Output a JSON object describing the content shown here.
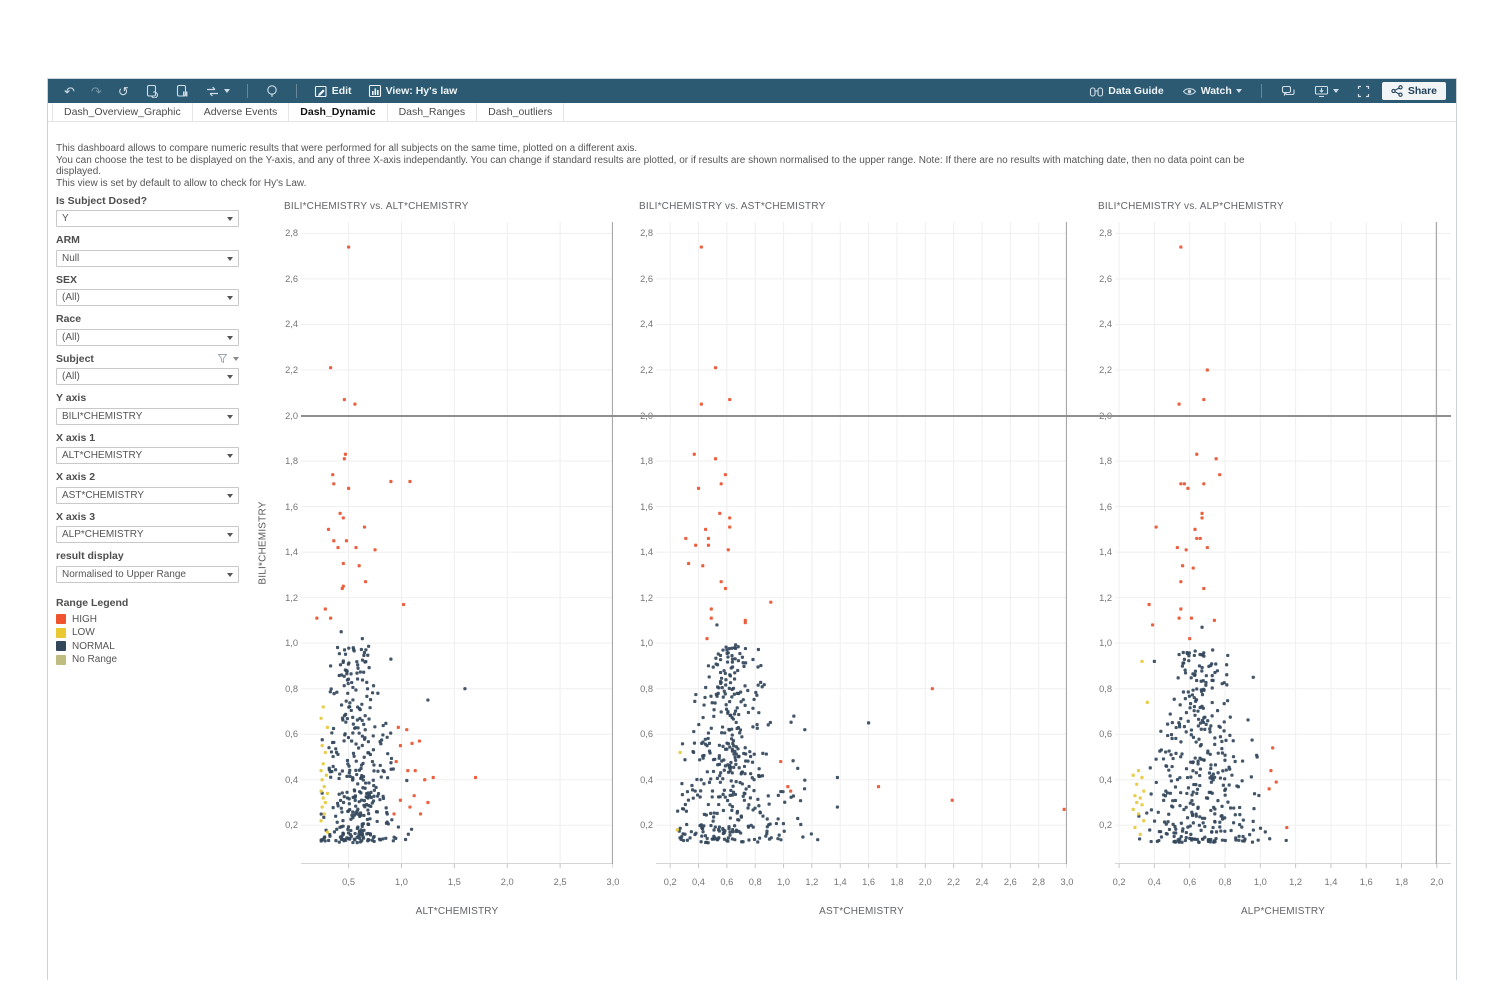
{
  "toolbar": {
    "edit_label": "Edit",
    "view_label": "View: Hy's law",
    "data_guide_label": "Data Guide",
    "watch_label": "Watch",
    "share_label": "Share",
    "background_color": "#2d5a73"
  },
  "tabs": {
    "items": [
      "Dash_Overview_Graphic",
      "Adverse Events",
      "Dash_Dynamic",
      "Dash_Ranges",
      "Dash_outliers"
    ],
    "active": "Dash_Dynamic"
  },
  "description": {
    "lines": [
      "This dashboard allows to compare numeric results that were performed for all subjects on the same time, plotted on a different axis.",
      "You can choose the test to be displayed on the Y-axis, and any of three X-axis independantly. You can change if standard results are plotted, or if results are shown normalised to the upper range. Note: If there are no results with matching date, then no data point can be displayed.",
      "This view is set by default to allow to check for Hy's Law."
    ]
  },
  "filters": [
    {
      "label": "Is Subject Dosed?",
      "value": "Y"
    },
    {
      "label": "ARM",
      "value": "Null"
    },
    {
      "label": "SEX",
      "value": "(All)"
    },
    {
      "label": "Race",
      "value": "(All)"
    },
    {
      "label": "Subject",
      "value": "(All)",
      "has_funnel": true
    },
    {
      "label": "Y axis",
      "value": "BILI*CHEMISTRY"
    },
    {
      "label": "X axis 1",
      "value": "ALT*CHEMISTRY"
    },
    {
      "label": "X axis 2",
      "value": "AST*CHEMISTRY"
    },
    {
      "label": "X axis 3",
      "value": "ALP*CHEMISTRY"
    },
    {
      "label": "result display",
      "value": "Normalised to Upper Range"
    }
  ],
  "legend": {
    "title": "Range Legend",
    "items": [
      {
        "label": "HIGH",
        "color": "#f0542f"
      },
      {
        "label": "LOW",
        "color": "#eac832"
      },
      {
        "label": "NORMAL",
        "color": "#33475b"
      },
      {
        "label": "No Range",
        "color": "#c0bb7e"
      }
    ]
  },
  "chart_data": {
    "type": "scatter",
    "ylabel": "BILI*CHEMISTRY",
    "reference_line_y": 2.0,
    "point_colors": {
      "HIGH": "#ea5330",
      "LOW": "#e7c93a",
      "NORMAL": "#33475b"
    },
    "shared_y": {
      "range": [
        0.03,
        2.85
      ],
      "tick_values": [
        0.2,
        0.4,
        0.6,
        0.8,
        1.0,
        1.2,
        1.4,
        1.6,
        1.8,
        2.0,
        2.2,
        2.4,
        2.6,
        2.8
      ],
      "tick_labels": [
        "0,2",
        "0,4",
        "0,6",
        "0,8",
        "1,0",
        "1,2",
        "1,4",
        "1,6",
        "1,8",
        "2,0",
        "2,2",
        "2,4",
        "2,6",
        "2,8"
      ]
    },
    "charts": [
      {
        "title": "BILI*CHEMISTRY vs. ALT*CHEMISTRY",
        "xlabel": "ALT*CHEMISTRY",
        "x_range": [
          0.05,
          3.0
        ],
        "x_tick_values": [
          0.5,
          1.0,
          1.5,
          2.0,
          2.5,
          3.0
        ],
        "x_tick_labels": [
          "0,5",
          "1,0",
          "1,5",
          "2,0",
          "2,5",
          "3,0"
        ],
        "x_border_at": 3.0,
        "series": [
          {
            "name": "NORMAL",
            "points": [
              [
                1.6,
                0.8
              ],
              [
                0.9,
                0.93
              ],
              [
                0.43,
                1.05
              ],
              [
                1.25,
                0.75
              ],
              [
                0.63,
                1.02
              ],
              [
                0.33,
                0.9
              ]
            ],
            "cluster": {
              "seed": 11,
              "count": 360,
              "center_x": 0.55,
              "spread_x": 0.52,
              "x_min": 0.24,
              "x_max": 1.42,
              "y_min": 0.13,
              "y_max": 0.99,
              "right_tail": 0.5
            }
          },
          {
            "name": "LOW",
            "points": [
              [
                0.26,
                0.72
              ],
              [
                0.24,
                0.67
              ],
              [
                0.3,
                0.63
              ],
              [
                0.25,
                0.55
              ],
              [
                0.28,
                0.52
              ],
              [
                0.26,
                0.47
              ],
              [
                0.24,
                0.44
              ],
              [
                0.29,
                0.42
              ],
              [
                0.25,
                0.4
              ],
              [
                0.27,
                0.37
              ],
              [
                0.24,
                0.35
              ],
              [
                0.3,
                0.34
              ],
              [
                0.26,
                0.32
              ],
              [
                0.28,
                0.3
              ],
              [
                0.25,
                0.28
              ],
              [
                0.27,
                0.25
              ],
              [
                0.24,
                0.22
              ],
              [
                0.3,
                0.17
              ]
            ]
          },
          {
            "name": "HIGH",
            "points": [
              [
                0.5,
                2.74
              ],
              [
                0.33,
                2.21
              ],
              [
                0.46,
                2.07
              ],
              [
                0.56,
                2.05
              ],
              [
                0.47,
                1.83
              ],
              [
                0.46,
                1.81
              ],
              [
                0.35,
                1.74
              ],
              [
                0.36,
                1.7
              ],
              [
                0.5,
                1.68
              ],
              [
                0.9,
                1.71
              ],
              [
                1.08,
                1.71
              ],
              [
                0.42,
                1.57
              ],
              [
                0.45,
                1.55
              ],
              [
                0.31,
                1.5
              ],
              [
                0.65,
                1.51
              ],
              [
                0.36,
                1.45
              ],
              [
                0.48,
                1.45
              ],
              [
                0.4,
                1.42
              ],
              [
                0.57,
                1.42
              ],
              [
                0.75,
                1.41
              ],
              [
                0.45,
                1.35
              ],
              [
                0.6,
                1.34
              ],
              [
                0.66,
                1.27
              ],
              [
                0.45,
                1.25
              ],
              [
                0.44,
                1.24
              ],
              [
                0.28,
                1.15
              ],
              [
                0.2,
                1.11
              ],
              [
                0.33,
                1.11
              ],
              [
                1.02,
                1.17
              ],
              [
                0.97,
                0.63
              ],
              [
                1.05,
                0.62
              ],
              [
                0.99,
                0.55
              ],
              [
                1.1,
                0.56
              ],
              [
                1.17,
                0.57
              ],
              [
                0.95,
                0.48
              ],
              [
                1.06,
                0.44
              ],
              [
                1.13,
                0.44
              ],
              [
                1.22,
                0.4
              ],
              [
                1.3,
                0.41
              ],
              [
                1.7,
                0.41
              ],
              [
                1.12,
                0.33
              ],
              [
                0.99,
                0.31
              ],
              [
                1.08,
                0.28
              ],
              [
                1.25,
                0.3
              ],
              [
                0.93,
                0.25
              ],
              [
                1.18,
                0.25
              ]
            ]
          }
        ]
      },
      {
        "title": "BILI*CHEMISTRY vs. AST*CHEMISTRY",
        "xlabel": "AST*CHEMISTRY",
        "x_range": [
          0.1,
          3.0
        ],
        "x_tick_values": [
          0.2,
          0.4,
          0.6,
          0.8,
          1.0,
          1.2,
          1.4,
          1.6,
          1.8,
          2.0,
          2.2,
          2.4,
          2.6,
          2.8,
          3.0
        ],
        "x_tick_labels": [
          "0,2",
          "0,4",
          "0,6",
          "0,8",
          "1,0",
          "1,2",
          "1,4",
          "1,6",
          "1,8",
          "2,0",
          "2,2",
          "2,4",
          "2,6",
          "2,8",
          "3,0"
        ],
        "x_border_at": 3.0,
        "series": [
          {
            "name": "NORMAL",
            "points": [
              [
                0.53,
                1.08
              ],
              [
                1.15,
                0.62
              ],
              [
                1.38,
                0.41
              ],
              [
                1.38,
                0.28
              ],
              [
                1.1,
                0.45
              ],
              [
                1.1,
                0.23
              ],
              [
                1.6,
                0.65
              ],
              [
                0.6,
                0.97
              ]
            ],
            "cluster": {
              "seed": 22,
              "count": 410,
              "center_x": 0.6,
              "spread_x": 0.58,
              "x_min": 0.25,
              "x_max": 1.45,
              "y_min": 0.13,
              "y_max": 1.0,
              "right_tail": 0.6
            }
          },
          {
            "name": "LOW",
            "points": [
              [
                0.25,
                0.18
              ],
              [
                0.27,
                0.52
              ]
            ]
          },
          {
            "name": "HIGH",
            "points": [
              [
                0.42,
                2.74
              ],
              [
                0.52,
                2.21
              ],
              [
                0.62,
                2.07
              ],
              [
                0.42,
                2.05
              ],
              [
                0.37,
                1.83
              ],
              [
                0.52,
                1.81
              ],
              [
                0.59,
                1.74
              ],
              [
                0.56,
                1.7
              ],
              [
                0.4,
                1.68
              ],
              [
                0.55,
                1.57
              ],
              [
                0.62,
                1.55
              ],
              [
                0.62,
                1.51
              ],
              [
                0.45,
                1.5
              ],
              [
                0.31,
                1.46
              ],
              [
                0.47,
                1.46
              ],
              [
                0.38,
                1.43
              ],
              [
                0.47,
                1.43
              ],
              [
                0.61,
                1.41
              ],
              [
                0.33,
                1.35
              ],
              [
                0.43,
                1.34
              ],
              [
                0.56,
                1.27
              ],
              [
                0.59,
                1.24
              ],
              [
                0.91,
                1.18
              ],
              [
                0.49,
                1.15
              ],
              [
                0.49,
                1.11
              ],
              [
                0.73,
                1.1
              ],
              [
                0.73,
                1.09
              ],
              [
                0.46,
                1.02
              ],
              [
                2.05,
                0.8
              ],
              [
                0.98,
                0.48
              ],
              [
                1.03,
                0.37
              ],
              [
                1.05,
                0.35
              ],
              [
                1.67,
                0.37
              ],
              [
                2.19,
                0.31
              ],
              [
                2.98,
                0.27
              ]
            ]
          }
        ]
      },
      {
        "title": "BILI*CHEMISTRY vs. ALP*CHEMISTRY",
        "xlabel": "ALP*CHEMISTRY",
        "x_range": [
          0.177,
          2.08
        ],
        "x_tick_values": [
          0.2,
          0.4,
          0.6,
          0.8,
          1.0,
          1.2,
          1.4,
          1.6,
          1.8,
          2.0
        ],
        "x_tick_labels": [
          "0,2",
          "0,4",
          "0,6",
          "0,8",
          "1,0",
          "1,2",
          "1,4",
          "1,6",
          "1,8",
          "2,0"
        ],
        "x_border_at": 2.0,
        "series": [
          {
            "name": "NORMAL",
            "points": [
              [
                0.67,
                1.07
              ],
              [
                0.54,
                0.95
              ],
              [
                0.4,
                0.92
              ],
              [
                0.73,
                0.97
              ],
              [
                0.96,
                0.85
              ]
            ],
            "cluster": {
              "seed": 33,
              "count": 380,
              "center_x": 0.65,
              "spread_x": 0.48,
              "x_min": 0.3,
              "x_max": 1.18,
              "y_min": 0.13,
              "y_max": 0.97,
              "right_tail": 0.3
            }
          },
          {
            "name": "LOW",
            "points": [
              [
                0.33,
                0.92
              ],
              [
                0.36,
                0.74
              ],
              [
                0.31,
                0.44
              ],
              [
                0.28,
                0.42
              ],
              [
                0.33,
                0.41
              ],
              [
                0.3,
                0.38
              ],
              [
                0.34,
                0.35
              ],
              [
                0.29,
                0.33
              ],
              [
                0.32,
                0.32
              ],
              [
                0.3,
                0.3
              ],
              [
                0.33,
                0.29
              ],
              [
                0.28,
                0.27
              ],
              [
                0.31,
                0.25
              ],
              [
                0.34,
                0.22
              ],
              [
                0.29,
                0.19
              ],
              [
                0.32,
                0.16
              ]
            ]
          },
          {
            "name": "HIGH",
            "points": [
              [
                0.55,
                2.74
              ],
              [
                0.7,
                2.2
              ],
              [
                0.68,
                2.07
              ],
              [
                0.54,
                2.05
              ],
              [
                0.64,
                1.83
              ],
              [
                0.75,
                1.81
              ],
              [
                0.77,
                1.74
              ],
              [
                0.55,
                1.7
              ],
              [
                0.57,
                1.7
              ],
              [
                0.68,
                1.7
              ],
              [
                0.59,
                1.68
              ],
              [
                0.67,
                1.57
              ],
              [
                0.67,
                1.55
              ],
              [
                0.41,
                1.51
              ],
              [
                0.63,
                1.5
              ],
              [
                0.64,
                1.46
              ],
              [
                0.66,
                1.46
              ],
              [
                0.53,
                1.42
              ],
              [
                0.7,
                1.42
              ],
              [
                0.58,
                1.41
              ],
              [
                0.56,
                1.34
              ],
              [
                0.62,
                1.33
              ],
              [
                0.55,
                1.27
              ],
              [
                0.68,
                1.24
              ],
              [
                0.37,
                1.17
              ],
              [
                0.55,
                1.15
              ],
              [
                0.54,
                1.11
              ],
              [
                0.61,
                1.11
              ],
              [
                0.74,
                1.1
              ],
              [
                0.39,
                1.08
              ],
              [
                0.6,
                1.02
              ],
              [
                1.07,
                0.54
              ],
              [
                1.06,
                0.44
              ],
              [
                1.09,
                0.39
              ],
              [
                1.05,
                0.36
              ],
              [
                1.15,
                0.19
              ]
            ]
          }
        ]
      }
    ]
  }
}
